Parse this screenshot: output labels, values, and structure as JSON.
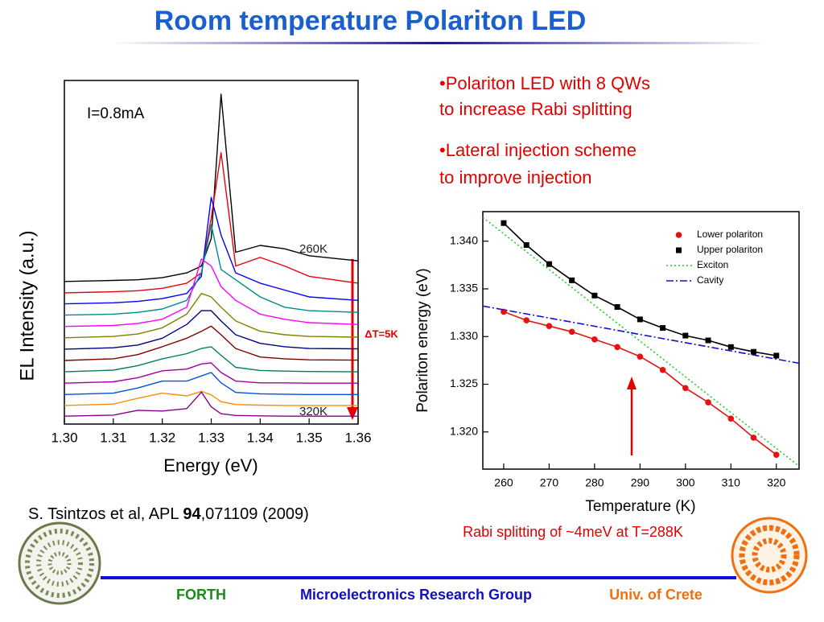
{
  "title": "Room temperature Polariton LED",
  "bullets": [
    [
      "•Polariton LED with 8 QWs",
      "to increase Rabi splitting"
    ],
    [
      "•Lateral injection scheme",
      "to improve injection"
    ]
  ],
  "citation": [
    "S. Tsintzos et al, APL ",
    "94",
    ",071109 (2009)"
  ],
  "caption": "Rabi splitting of ~4meV at T=288K",
  "footer": {
    "left": "FORTH",
    "center": "Microelectronics Research Group",
    "right": "Univ. of Crete"
  },
  "chart_data": [
    {
      "type": "line",
      "xlabel": "Energy (eV)",
      "ylabel": "EL Intensity (a.u.)",
      "xlim": [
        1.3,
        1.36
      ],
      "xticks": [
        {
          "value": 1.3,
          "label": "1.30"
        },
        1.31,
        1.32,
        1.33,
        1.34,
        1.35,
        1.36
      ],
      "ylim": [
        0,
        100
      ],
      "annotations": [
        "I=0.8mA",
        "260K",
        "320K",
        "ΔT=5K"
      ],
      "x": [
        1.3,
        1.31,
        1.315,
        1.32,
        1.325,
        1.328,
        1.33,
        1.332,
        1.335,
        1.34,
        1.345,
        1.35,
        1.36
      ],
      "series": [
        {
          "color": "#000000",
          "values": [
            41.5,
            41.8,
            42,
            42.6,
            44,
            46,
            54,
            96,
            50,
            52,
            51,
            49,
            47.5
          ]
        },
        {
          "color": "#e8000b",
          "values": [
            38.2,
            38.5,
            38.8,
            39.5,
            41,
            44,
            60,
            79,
            46,
            48.5,
            46,
            43,
            41
          ]
        },
        {
          "color": "#0000ff",
          "values": [
            35,
            35.3,
            35.7,
            36.5,
            38,
            43,
            66,
            55,
            44,
            41,
            39,
            37,
            36
          ]
        },
        {
          "color": "#008b8b",
          "values": [
            31.7,
            32,
            32.5,
            33.5,
            36,
            44,
            58,
            45,
            42,
            37,
            34,
            33,
            32.5
          ]
        },
        {
          "color": "#ff00ff",
          "values": [
            28.4,
            28.7,
            29.3,
            30.5,
            34,
            48,
            46,
            40,
            36,
            32,
            30.5,
            29.5,
            29
          ]
        },
        {
          "color": "#808000",
          "values": [
            25.1,
            25.5,
            26.2,
            28,
            32,
            38,
            37,
            34,
            30,
            27,
            26,
            25.5,
            25.3
          ]
        },
        {
          "color": "#000080",
          "values": [
            21.8,
            22.2,
            23,
            25,
            29,
            33,
            33,
            30,
            26,
            23.5,
            22.5,
            22,
            21.9
          ]
        },
        {
          "color": "#800000",
          "values": [
            18.5,
            19,
            20.2,
            22.5,
            25,
            27,
            28.5,
            26,
            22,
            19.5,
            19,
            18.7,
            18.6
          ]
        },
        {
          "color": "#008060",
          "values": [
            15.2,
            15.7,
            17,
            19,
            20.5,
            22,
            22.5,
            20,
            16.5,
            15.6,
            15.4,
            15.3,
            15.2
          ]
        },
        {
          "color": "#a000a0",
          "values": [
            11.9,
            12.3,
            13.5,
            15.5,
            16,
            17.5,
            17.8,
            15,
            12.5,
            12,
            12,
            11.9,
            11.9
          ]
        },
        {
          "color": "#0050e0",
          "values": [
            8.6,
            9,
            10.5,
            12.5,
            12.5,
            14,
            15,
            12,
            9.2,
            8.8,
            8.7,
            8.6,
            8.6
          ]
        },
        {
          "color": "#ff8c00",
          "values": [
            5.4,
            5.8,
            7.5,
            9,
            8.2,
            9.5,
            8.5,
            6.5,
            5.7,
            5.5,
            5.4,
            5.4,
            5.4
          ]
        },
        {
          "color": "#8b008b",
          "values": [
            2.3,
            2.6,
            4,
            3.8,
            4.5,
            9.3,
            5,
            3,
            2.5,
            2.4,
            2.3,
            2.3,
            2.3
          ]
        }
      ]
    },
    {
      "type": "scatter",
      "xlabel": "Temperature (K)",
      "ylabel": "Polariton energy (eV)",
      "xlim": [
        255.4,
        325
      ],
      "xticks": [
        260,
        270,
        280,
        290,
        300,
        310,
        320
      ],
      "ylim": [
        1.3161,
        1.3431
      ],
      "yticks": [
        {
          "value": 1.32,
          "label": "1.320"
        },
        1.325,
        {
          "value": 1.33,
          "label": "1.330"
        },
        1.335,
        {
          "value": 1.34,
          "label": "1.340"
        }
      ],
      "legend": "upper right",
      "series": [
        {
          "name": "Lower polariton",
          "color": "#e81010",
          "marker": "circle",
          "line": true,
          "x": [
            260,
            265,
            270,
            275,
            280,
            285,
            290,
            295,
            300,
            305,
            310,
            315,
            320
          ],
          "values": [
            1.3326,
            1.3317,
            1.3311,
            1.3305,
            1.3297,
            1.3289,
            1.3279,
            1.3265,
            1.3246,
            1.3231,
            1.3214,
            1.3194,
            1.3176
          ]
        },
        {
          "name": "Upper polariton",
          "color": "#000000",
          "marker": "square",
          "line": true,
          "x": [
            260,
            265,
            270,
            275,
            280,
            285,
            290,
            295,
            300,
            305,
            310,
            315,
            320
          ],
          "values": [
            1.3419,
            1.3396,
            1.3376,
            1.3359,
            1.3343,
            1.3331,
            1.3318,
            1.3309,
            1.3301,
            1.3296,
            1.3289,
            1.3284,
            1.328
          ]
        },
        {
          "name": "Exciton",
          "color": "#22cc22",
          "dash": "dotted",
          "line": true,
          "x": [
            255.4,
            325
          ],
          "values": [
            1.3425,
            1.3164
          ]
        },
        {
          "name": "Cavity",
          "color": "#1010d0",
          "dash": "dashdot",
          "line": true,
          "x": [
            255.4,
            325
          ],
          "values": [
            1.3332,
            1.3272
          ]
        }
      ]
    }
  ]
}
